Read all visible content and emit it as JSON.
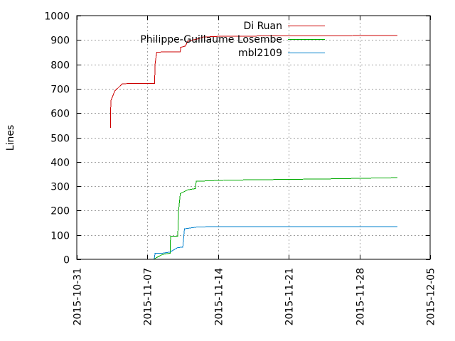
{
  "chart_data": {
    "type": "line",
    "ylabel": "Lines",
    "ylim": [
      0,
      1000
    ],
    "yticks": [
      "0",
      "100",
      "200",
      "300",
      "400",
      "500",
      "600",
      "700",
      "800",
      "900",
      "1000"
    ],
    "xlim": [
      "2015-10-31",
      "2015-12-05"
    ],
    "xticks": [
      "2015-10-31",
      "2015-11-07",
      "2015-11-14",
      "2015-11-21",
      "2015-11-28",
      "2015-12-05"
    ],
    "grid": true,
    "legend_position": "top-right",
    "series": [
      {
        "name": "Di Ruan",
        "color": "#cc0000",
        "points": [
          [
            "2015-11-03T08:00",
            540
          ],
          [
            "2015-11-03T09:00",
            650
          ],
          [
            "2015-11-03T18:00",
            690
          ],
          [
            "2015-11-04T12:00",
            720
          ],
          [
            "2015-11-05T12:00",
            722
          ],
          [
            "2015-11-06T00:00",
            722
          ],
          [
            "2015-11-07T12:00",
            722
          ],
          [
            "2015-11-07T17:00",
            722
          ],
          [
            "2015-11-07T18:00",
            800
          ],
          [
            "2015-11-07T22:00",
            850
          ],
          [
            "2015-11-09T12:00",
            852
          ],
          [
            "2015-11-10T06:00",
            852
          ],
          [
            "2015-11-10T07:00",
            870
          ],
          [
            "2015-11-10T18:00",
            875
          ],
          [
            "2015-11-11T00:00",
            895
          ],
          [
            "2015-11-12T00:00",
            905
          ],
          [
            "2015-11-12T12:00",
            912
          ],
          [
            "2015-11-14T00:00",
            915
          ],
          [
            "2015-11-20T00:00",
            917
          ],
          [
            "2015-12-01T18:00",
            918
          ]
        ]
      },
      {
        "name": "Philippe-Guillaume Losembe",
        "color": "#00aa00",
        "points": [
          [
            "2015-11-07T14:00",
            0
          ],
          [
            "2015-11-08T12:00",
            20
          ],
          [
            "2015-11-09T06:00",
            25
          ],
          [
            "2015-11-09T07:00",
            95
          ],
          [
            "2015-11-10T00:00",
            95
          ],
          [
            "2015-11-10T02:00",
            200
          ],
          [
            "2015-11-10T06:00",
            270
          ],
          [
            "2015-11-11T00:00",
            285
          ],
          [
            "2015-11-11T18:00",
            290
          ],
          [
            "2015-11-11T20:00",
            320
          ],
          [
            "2015-11-15T00:00",
            325
          ],
          [
            "2015-11-21T00:00",
            328
          ],
          [
            "2015-11-25T00:00",
            330
          ],
          [
            "2015-12-01T18:00",
            335
          ]
        ]
      },
      {
        "name": "mbl2109",
        "color": "#0080cc",
        "points": [
          [
            "2015-11-07T16:00",
            0
          ],
          [
            "2015-11-07T18:00",
            25
          ],
          [
            "2015-11-08T12:00",
            25
          ],
          [
            "2015-11-09T06:00",
            30
          ],
          [
            "2015-11-10T00:00",
            48
          ],
          [
            "2015-11-10T12:00",
            50
          ],
          [
            "2015-11-10T16:00",
            125
          ],
          [
            "2015-11-11T12:00",
            130
          ],
          [
            "2015-11-12T00:00",
            133
          ],
          [
            "2015-11-14T00:00",
            134
          ],
          [
            "2015-12-01T18:00",
            134
          ]
        ]
      }
    ]
  }
}
